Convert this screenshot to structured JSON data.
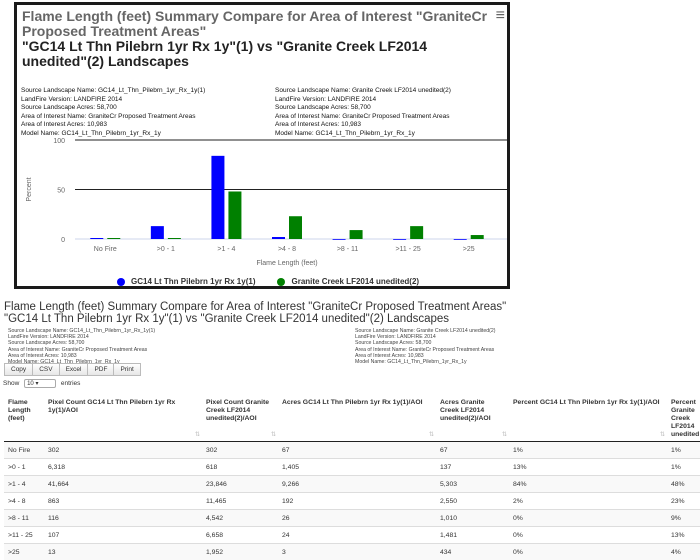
{
  "chart_panel": {
    "title_line1": "Flame Length (feet) Summary Compare for Area of Interest \"GraniteCr",
    "title_line2": "Proposed Treatment Areas\"",
    "title_line3": "\"GC14 Lt Thn Pilebrn 1yr Rx 1y\"(1) vs \"Granite Creek LF2014",
    "title_line4": "unedited\"(2) Landscapes",
    "menu_icon": "hamburger-icon",
    "left_meta": [
      "Source Landscape Name: GC14_Lt_Thn_Pilebrn_1yr_Rx_1y(1)",
      "LandFire Version: LANDFIRE 2014",
      "Source Landscape Acres: 58,700",
      "Area of Interest Name: GraniteCr Proposed Treatment Areas",
      "Area of Interest Acres: 10,983",
      "Model Name: GC14_Lt_Thn_Pilebrn_1yr_Rx_1y"
    ],
    "right_meta": [
      "Source Landscape Name: Granite Creek LF2014 unedited(2)",
      "LandFire Version: LANDFIRE 2014",
      "Source Landscape Acres: 58,700",
      "Area of Interest Name: GraniteCr Proposed Treatment Areas",
      "Area of Interest Acres: 10,983",
      "Model Name: GC14_Lt_Thn_Pilebrn_1yr_Rx_1y"
    ]
  },
  "chart_data": {
    "type": "bar",
    "title": "Flame Length (feet) Summary Compare for Area of Interest \"GraniteCr Proposed Treatment Areas\" \"GC14 Lt Thn Pilebrn 1yr Rx 1y\"(1) vs \"Granite Creek LF2014 unedited\"(2) Landscapes",
    "xlabel": "Flame Length (feet)",
    "ylabel": "Percent",
    "ylim": [
      0,
      100
    ],
    "yticks": [
      "0",
      "50",
      "100"
    ],
    "categories": [
      "No Fire",
      ">0 - 1",
      ">1 - 4",
      ">4 - 8",
      ">8 - 11",
      ">11 - 25",
      ">25"
    ],
    "series": [
      {
        "name": "GC14 Lt Thn Pilebrn 1yr Rx 1y(1)",
        "color": "#0000ff",
        "values": [
          1,
          13,
          84,
          2,
          0,
          0,
          0
        ]
      },
      {
        "name": "Granite Creek LF2014 unedited(2)",
        "color": "#008000",
        "values": [
          1,
          1,
          48,
          23,
          9,
          13,
          4
        ]
      }
    ],
    "legend": "bottom"
  },
  "table_section": {
    "title_line1": "Flame Length (feet) Summary Compare for Area of Interest \"GraniteCr Proposed Treatment Areas\"",
    "title_line2": "\"GC14 Lt Thn Pilebrn 1yr Rx 1y\"(1) vs \"Granite Creek LF2014 unedited\"(2) Landscapes",
    "left_meta": [
      "Source Landscape Name: GC14_Lt_Thn_Pilebrn_1yr_Rx_1y(1)",
      "LandFire Version: LANDFIRE 2014",
      "Source Landscape Acres: 58,700",
      "Area of Interest Name: GraniteCr Proposed Treatment Areas",
      "Area of Interest Acres: 10,983",
      "Model Name: GC14_Lt_Thn_Pilebrn_1yr_Rx_1y"
    ],
    "right_meta": [
      "Source Landscape Name: Granite Creek LF2014 unedited(2)",
      "LandFire Version: LANDFIRE 2014",
      "Source Landscape Acres: 58,700",
      "Area of Interest Name: GraniteCr Proposed Treatment Areas",
      "Area of Interest Acres: 10,983",
      "Model Name: GC14_Lt_Thn_Pilebrn_1yr_Rx_1y"
    ],
    "buttons": [
      "Copy",
      "CSV",
      "Excel",
      "PDF",
      "Print"
    ],
    "show_label": "Show",
    "show_value": "10",
    "entries_label": "entries",
    "headers": [
      "Flame Length (feet)",
      "Pixel Count GC14 Lt Thn Pilebrn 1yr Rx 1y(1)/AOI",
      "Pixel Count Granite Creek LF2014 unedited(2)/AOI",
      "Acres GC14 Lt Thn Pilebrn 1yr Rx 1y(1)/AOI",
      "Acres Granite Creek LF2014 unedited(2)/AOI",
      "Percent GC14 Lt Thn Pilebrn 1yr Rx 1y(1)/AOI",
      "Percent Granite Creek LF2014 unedited"
    ],
    "rows": [
      [
        "No Fire",
        "302",
        "302",
        "67",
        "67",
        "1%",
        "1%"
      ],
      [
        ">0 - 1",
        "6,318",
        "618",
        "1,405",
        "137",
        "13%",
        "1%"
      ],
      [
        ">1 - 4",
        "41,664",
        "23,846",
        "9,266",
        "5,303",
        "84%",
        "48%"
      ],
      [
        ">4 - 8",
        "863",
        "11,465",
        "192",
        "2,550",
        "2%",
        "23%"
      ],
      [
        ">8 - 11",
        "116",
        "4,542",
        "26",
        "1,010",
        "0%",
        "9%"
      ],
      [
        ">11 - 25",
        "107",
        "6,658",
        "24",
        "1,481",
        "0%",
        "13%"
      ],
      [
        ">25",
        "13",
        "1,952",
        "3",
        "434",
        "0%",
        "4%"
      ]
    ]
  }
}
